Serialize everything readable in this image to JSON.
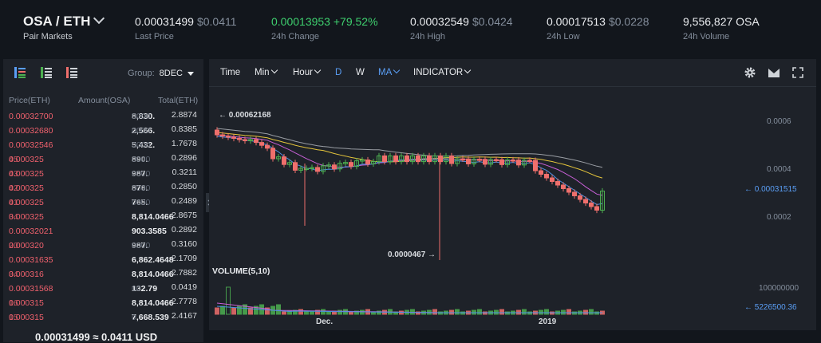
{
  "header": {
    "pair": "OSA / ETH",
    "pair_sub": "Pair Markets",
    "last_price": "0.00031499",
    "last_price_usd": "$0.0411",
    "last_price_label": "Last Price",
    "change": "0.00013953",
    "change_pct": "+79.52%",
    "change_label": "24h Change",
    "high": "0.00032549",
    "high_usd": "$0.0424",
    "high_label": "24h High",
    "low": "0.00017513",
    "low_usd": "$0.0228",
    "low_label": "24h Low",
    "volume": "9,556,827 OSA",
    "volume_label": "24h Volume"
  },
  "orderbook": {
    "group_label": "Group:",
    "group_value": "8DEC",
    "columns": [
      "Price(ETH)",
      "Amount(OSA)",
      "Total(ETH)"
    ],
    "rows": [
      {
        "p1": "0.00032700",
        "p2": "",
        "a1": "8,830.",
        "a2": "0000",
        "t": "2.8874"
      },
      {
        "p1": "0.00032680",
        "p2": "",
        "a1": "2,566.",
        "a2": "0000",
        "t": "0.8385"
      },
      {
        "p1": "0.00032546",
        "p2": "",
        "a1": "5,432.",
        "a2": "0000",
        "t": "1.7678"
      },
      {
        "p1": "0.000325",
        "p2": "45",
        "a1": "890.",
        "a2": "0000",
        "t": "0.2896"
      },
      {
        "p1": "0.000325",
        "p2": "43",
        "a1": "987.",
        "a2": "0000",
        "t": "0.3211"
      },
      {
        "p1": "0.000325",
        "p2": "42",
        "a1": "876.",
        "a2": "0000",
        "t": "0.2850"
      },
      {
        "p1": "0.000325",
        "p2": "41",
        "a1": "765.",
        "a2": "0000",
        "t": "0.2489"
      },
      {
        "p1": "0.000325",
        "p2": "34",
        "a1": "8,814.0466",
        "a2": "",
        "t": "2.8675"
      },
      {
        "p1": "0.00032021",
        "p2": "",
        "a1": "903.3585",
        "a2": "",
        "t": "0.2892"
      },
      {
        "p1": "0.000320",
        "p2": "20",
        "a1": "987.",
        "a2": "0000",
        "t": "0.3160"
      },
      {
        "p1": "0.00031635",
        "p2": "",
        "a1": "6,862.4648",
        "a2": "",
        "t": "2.1709"
      },
      {
        "p1": "0.000316",
        "p2": "34",
        "a1": "8,814.0466",
        "a2": "",
        "t": "2.7882"
      },
      {
        "p1": "0.00031568",
        "p2": "",
        "a1": "132.79",
        "a2": "00",
        "t": "0.0419"
      },
      {
        "p1": "0.000315",
        "p2": "16",
        "a1": "8,814.0466",
        "a2": "",
        "t": "2.7778"
      },
      {
        "p1": "0.000315",
        "p2": "15",
        "a1": "7,668.539",
        "a2": "0",
        "t": "2.4167"
      }
    ],
    "footer": "0.00031499 ≈ 0.0411 USD"
  },
  "chart": {
    "toolbar": {
      "time": "Time",
      "min": "Min",
      "hour": "Hour",
      "d": "D",
      "w": "W",
      "ma": "MA",
      "indicator": "INDICATOR"
    },
    "y_labels": [
      "0.0006",
      "0.0004",
      "0.0002"
    ],
    "current_price_tag": "← 0.00031515",
    "high_callout": "← 0.00062168",
    "low_callout": "0.0000467 →",
    "volume_title": "VOLUME(5,10)",
    "volume_axis": "100000000",
    "volume_tag": "← 5226500.36",
    "x_labels": [
      "Dec.",
      "2019"
    ],
    "colors": {
      "up": "#4caf50",
      "down": "#ef6f6c",
      "ma_white": "#cfd3d8",
      "ma_yellow": "#e5c53b",
      "ma_purple": "#c75fd6",
      "ma_blue": "#4d8fe0"
    }
  }
}
